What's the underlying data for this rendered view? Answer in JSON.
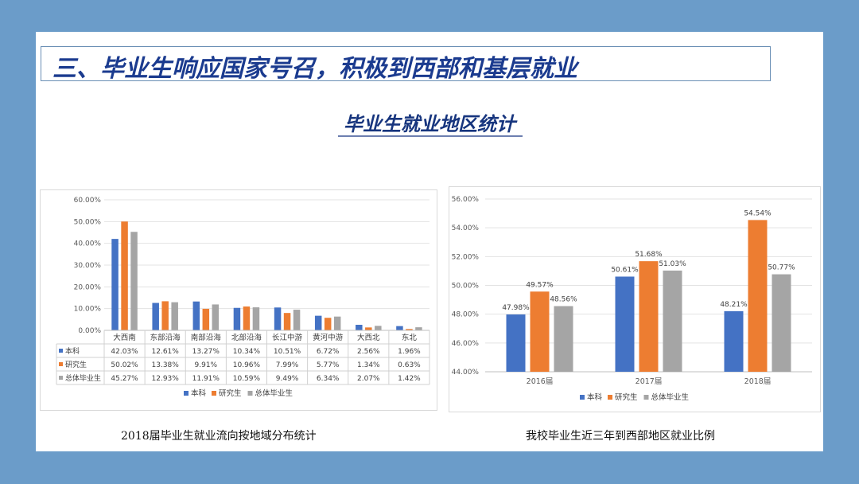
{
  "title": "三、毕业生响应国家号召，积极到西部和基层就业",
  "subtitle": "毕业生就业地区统计",
  "captions": {
    "left": "2018届毕业生就业流向按地域分布统计",
    "right": "我校毕业生近三年到西部地区就业比例"
  },
  "chart_data": [
    {
      "type": "bar",
      "categories": [
        "大西南",
        "东部沿海",
        "南部沿海",
        "北部沿海",
        "长江中游",
        "黄河中游",
        "大西北",
        "东北"
      ],
      "series": [
        {
          "name": "本科",
          "color": "#4472c4",
          "values": [
            42.03,
            12.61,
            13.27,
            10.34,
            10.51,
            6.72,
            2.56,
            1.96
          ],
          "labels": [
            "42.03%",
            "12.61%",
            "13.27%",
            "10.34%",
            "10.51%",
            "6.72%",
            "2.56%",
            "1.96%"
          ]
        },
        {
          "name": "研究生",
          "color": "#ed7d31",
          "values": [
            50.02,
            13.38,
            9.91,
            10.96,
            7.99,
            5.77,
            1.34,
            0.63
          ],
          "labels": [
            "50.02%",
            "13.38%",
            "9.91%",
            "10.96%",
            "7.99%",
            "5.77%",
            "1.34%",
            "0.63%"
          ]
        },
        {
          "name": "总体毕业生",
          "color": "#a5a5a5",
          "values": [
            45.27,
            12.93,
            11.91,
            10.59,
            9.49,
            6.34,
            2.07,
            1.42
          ],
          "labels": [
            "45.27%",
            "12.93%",
            "11.91%",
            "10.59%",
            "9.49%",
            "6.34%",
            "2.07%",
            "1.42%"
          ]
        }
      ],
      "ylim": [
        0,
        60
      ],
      "yticks": [
        "0.00%",
        "10.00%",
        "20.00%",
        "30.00%",
        "40.00%",
        "50.00%",
        "60.00%"
      ],
      "grid": true,
      "data_table": true,
      "legend": "bottom"
    },
    {
      "type": "bar",
      "categories": [
        "2016届",
        "2017届",
        "2018届"
      ],
      "series": [
        {
          "name": "本科",
          "color": "#4472c4",
          "values": [
            47.98,
            50.61,
            48.21
          ],
          "labels": [
            "47.98%",
            "50.61%",
            "48.21%"
          ]
        },
        {
          "name": "研究生",
          "color": "#ed7d31",
          "values": [
            49.57,
            51.68,
            54.54
          ],
          "labels": [
            "49.57%",
            "51.68%",
            "54.54%"
          ]
        },
        {
          "name": "总体毕业生",
          "color": "#a5a5a5",
          "values": [
            48.56,
            51.03,
            50.77
          ],
          "labels": [
            "48.56%",
            "51.03%",
            "50.77%"
          ]
        }
      ],
      "ylim": [
        44,
        56
      ],
      "yticks": [
        "44.00%",
        "46.00%",
        "48.00%",
        "50.00%",
        "52.00%",
        "54.00%",
        "56.00%"
      ],
      "grid": true,
      "legend": "bottom"
    }
  ]
}
